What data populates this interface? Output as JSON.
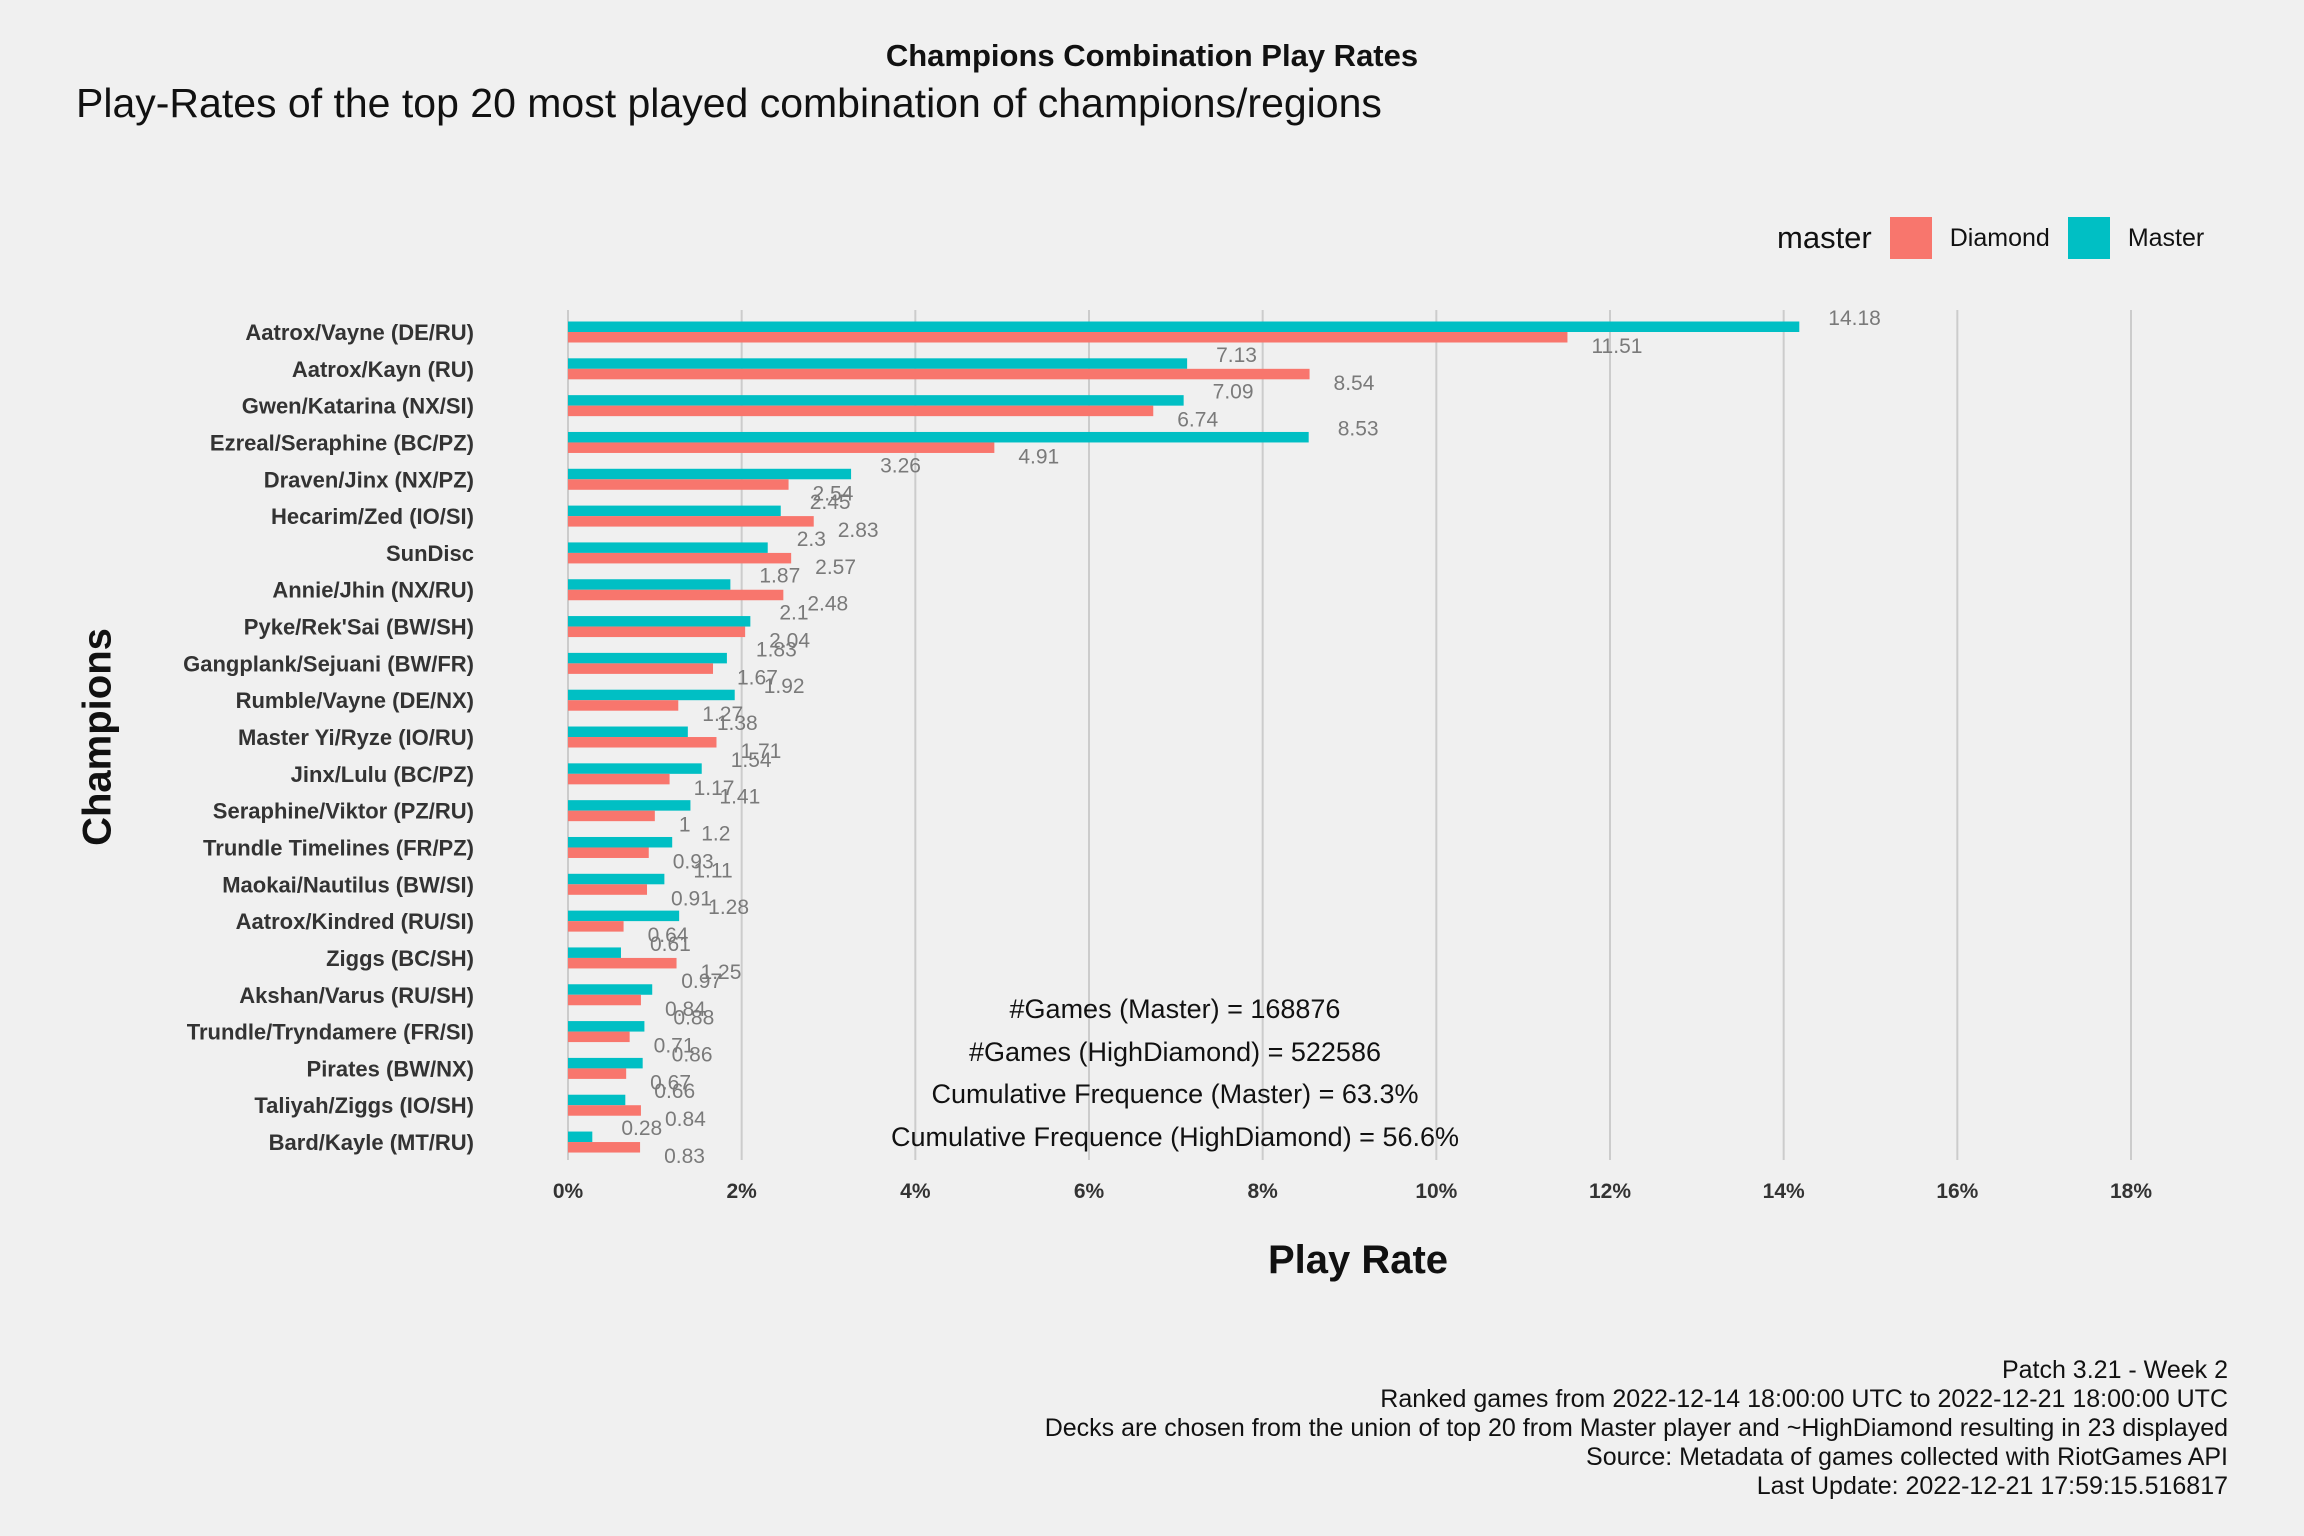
{
  "chart_data": {
    "type": "bar",
    "orientation": "horizontal",
    "title": "Champions Combination Play Rates",
    "subtitle": "Play-Rates of the top 20 most played combination of champions/regions",
    "xlabel": "Play Rate",
    "ylabel": "Champions",
    "xlim": [
      0,
      18
    ],
    "x_ticks": [
      "0%",
      "2%",
      "4%",
      "6%",
      "8%",
      "10%",
      "12%",
      "14%",
      "16%",
      "18%"
    ],
    "x_tick_values": [
      0,
      2,
      4,
      6,
      8,
      10,
      12,
      14,
      16,
      18
    ],
    "grid": "vertical major",
    "legend": {
      "title": "master",
      "position": "top-right",
      "entries": [
        "Diamond",
        "Master"
      ]
    },
    "categories": [
      "Aatrox/Vayne (DE/RU)",
      "Aatrox/Kayn (RU)",
      "Gwen/Katarina (NX/SI)",
      "Ezreal/Seraphine (BC/PZ)",
      "Draven/Jinx (NX/PZ)",
      "Hecarim/Zed (IO/SI)",
      "SunDisc",
      "Annie/Jhin (NX/RU)",
      "Pyke/Rek'Sai (BW/SH)",
      "Gangplank/Sejuani (BW/FR)",
      "Rumble/Vayne (DE/NX)",
      "Master Yi/Ryze (IO/RU)",
      "Jinx/Lulu (BC/PZ)",
      "Seraphine/Viktor (PZ/RU)",
      "Trundle Timelines (FR/PZ)",
      "Maokai/Nautilus (BW/SI)",
      "Aatrox/Kindred (RU/SI)",
      "Ziggs (BC/SH)",
      "Akshan/Varus (RU/SH)",
      "Trundle/Tryndamere (FR/SI)",
      "Pirates (BW/NX)",
      "Taliyah/Ziggs (IO/SH)",
      "Bard/Kayle (MT/RU)"
    ],
    "series": [
      {
        "name": "Master",
        "color": "#00bfc4",
        "values": [
          14.18,
          7.13,
          7.09,
          8.53,
          3.26,
          2.45,
          2.3,
          1.87,
          2.1,
          1.83,
          1.92,
          1.38,
          1.54,
          1.41,
          1.2,
          1.11,
          1.28,
          0.61,
          0.97,
          0.88,
          0.86,
          0.66,
          0.28
        ],
        "labels": [
          "14.18",
          "7.13",
          "7.09",
          "8.53",
          "3.26",
          "2.45",
          "2.3",
          "1.87",
          "2.1",
          "1.83",
          "1.92",
          "1.38",
          "1.54",
          "1.41",
          "1.2",
          "1.11",
          "1.28",
          "0.61",
          "0.97",
          "0.88",
          "0.86",
          "0.66",
          "0.28"
        ]
      },
      {
        "name": "Diamond",
        "color": "#f8766d",
        "values": [
          11.51,
          8.54,
          6.74,
          4.91,
          2.54,
          2.83,
          2.57,
          2.48,
          2.04,
          1.67,
          1.27,
          1.71,
          1.17,
          1.0,
          0.93,
          0.91,
          0.64,
          1.25,
          0.84,
          0.71,
          0.67,
          0.84,
          0.83
        ],
        "labels": [
          "11.51",
          "8.54",
          "6.74",
          "4.91",
          "2.54",
          "2.83",
          "2.57",
          "2.48",
          "2.04",
          "1.67",
          "1.27",
          "1.71",
          "1.17",
          "1",
          "0.93",
          "0.91",
          "0.64",
          "1.25",
          "0.84",
          "0.71",
          "0.67",
          "0.84",
          "0.83"
        ]
      }
    ],
    "annotations": [
      "#Games (Master) = 168876",
      "#Games (HighDiamond) = 522586",
      "Cumulative Frequence (Master) = 63.3%",
      "Cumulative Frequence (HighDiamond) = 56.6%"
    ],
    "caption": [
      "Patch 3.21 - Week 2",
      "Ranked games from 2022-12-14 18:00:00 UTC to 2022-12-21 18:00:00 UTC",
      "Decks are chosen from the union of top 20 from Master player and ~HighDiamond resulting in 23 displayed",
      "Source: Metadata of games collected with RiotGames API",
      "Last Update: 2022-12-21 17:59:15.516817"
    ],
    "colors": {
      "background": "#f0f0f0",
      "grid": "#cccccc",
      "value_label": "#7a7a7a",
      "text": "#111111"
    }
  }
}
